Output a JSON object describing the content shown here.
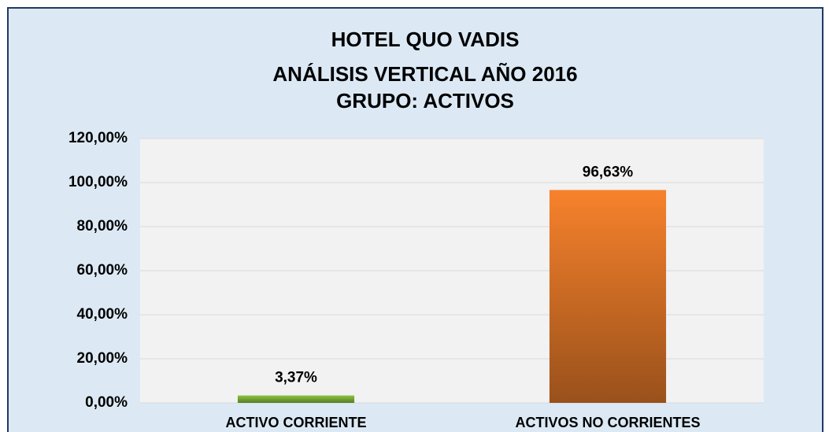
{
  "chart_data": {
    "type": "bar",
    "title": [
      "HOTEL QUO VADIS",
      "ANÁLISIS VERTICAL AÑO 2016",
      "GRUPO: ACTIVOS"
    ],
    "categories": [
      "ACTIVO CORRIENTE",
      "ACTIVOS NO CORRIENTES"
    ],
    "values": [
      3.37,
      96.63
    ],
    "value_labels": [
      "3,37%",
      "96,63%"
    ],
    "colors": [
      "#8cc63f",
      "#f7822c"
    ],
    "ylim": [
      0,
      120
    ],
    "yticks": [
      {
        "value": 0,
        "label": "0,00%"
      },
      {
        "value": 20,
        "label": "20,00%"
      },
      {
        "value": 40,
        "label": "40,00%"
      },
      {
        "value": 60,
        "label": "60,00%"
      },
      {
        "value": 80,
        "label": "80,00%"
      },
      {
        "value": 100,
        "label": "100,00%"
      },
      {
        "value": 120,
        "label": "120,00%"
      }
    ],
    "grid": true
  }
}
